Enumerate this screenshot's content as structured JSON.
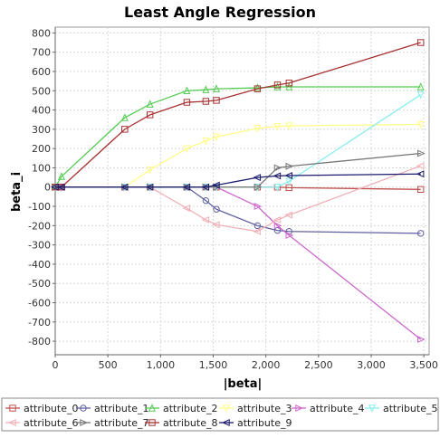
{
  "chart_data": {
    "type": "line",
    "title": "Least Angle Regression",
    "xlabel": "|beta|",
    "ylabel": "beta_i",
    "xlim": [
      0,
      3550
    ],
    "ylim": [
      -870,
      830
    ],
    "xticks": [
      0,
      500,
      1000,
      1500,
      2000,
      2500,
      3000,
      3500
    ],
    "xtick_labels": [
      "0",
      "500",
      "1,000",
      "1,500",
      "2,000",
      "2,500",
      "3,000",
      "3,500"
    ],
    "yticks": [
      -800,
      -700,
      -600,
      -500,
      -400,
      -300,
      -200,
      -100,
      0,
      100,
      200,
      300,
      400,
      500,
      600,
      700,
      800
    ],
    "ytick_labels": [
      "-800",
      "-700",
      "-600",
      "-500",
      "-400",
      "-300",
      "-200",
      "-100",
      "0",
      "100",
      "200",
      "300",
      "400",
      "500",
      "600",
      "700",
      "800"
    ],
    "grid": true,
    "legend_position": "bottom",
    "series": [
      {
        "name": "attribute_0",
        "color": "#c0504d",
        "marker": "square",
        "x": [
          0,
          60,
          660,
          900,
          1250,
          1430,
          1530,
          1920,
          2110,
          2220,
          3470
        ],
        "y": [
          0,
          0,
          0,
          0,
          0,
          0,
          0,
          0,
          0,
          -3,
          -12
        ]
      },
      {
        "name": "attribute_1",
        "color": "#6060a0",
        "marker": "circle",
        "x": [
          0,
          60,
          660,
          900,
          1250,
          1430,
          1530,
          1920,
          2110,
          2220,
          3470
        ],
        "y": [
          0,
          0,
          0,
          0,
          0,
          -70,
          -115,
          -200,
          -225,
          -230,
          -240
        ]
      },
      {
        "name": "attribute_2",
        "color": "#55cc55",
        "marker": "triangle-up",
        "x": [
          0,
          60,
          660,
          900,
          1250,
          1430,
          1530,
          1920,
          2110,
          2220,
          3470
        ],
        "y": [
          0,
          55,
          360,
          430,
          500,
          505,
          510,
          515,
          520,
          520,
          520
        ]
      },
      {
        "name": "attribute_3",
        "color": "#ffff88",
        "marker": "triangle-down",
        "x": [
          0,
          60,
          660,
          900,
          1250,
          1430,
          1530,
          1920,
          2110,
          2220,
          3470
        ],
        "y": [
          0,
          0,
          0,
          90,
          200,
          240,
          260,
          305,
          315,
          318,
          325
        ]
      },
      {
        "name": "attribute_4",
        "color": "#cc66cc",
        "marker": "triangle-right",
        "x": [
          0,
          60,
          660,
          900,
          1250,
          1430,
          1530,
          1920,
          2110,
          2220,
          3470
        ],
        "y": [
          0,
          0,
          0,
          0,
          0,
          0,
          0,
          -100,
          -200,
          -250,
          -790
        ]
      },
      {
        "name": "attribute_5",
        "color": "#88eeee",
        "marker": "triangle-down",
        "x": [
          0,
          60,
          660,
          900,
          1250,
          1430,
          1530,
          1920,
          2110,
          2220,
          3470
        ],
        "y": [
          0,
          0,
          0,
          0,
          0,
          0,
          0,
          0,
          0,
          30,
          480
        ]
      },
      {
        "name": "attribute_6",
        "color": "#f0b0b8",
        "marker": "triangle-left",
        "x": [
          0,
          60,
          660,
          900,
          1250,
          1430,
          1530,
          1920,
          2110,
          2220,
          3470
        ],
        "y": [
          0,
          0,
          0,
          0,
          -110,
          -170,
          -195,
          -230,
          -170,
          -145,
          110
        ]
      },
      {
        "name": "attribute_7",
        "color": "#777777",
        "marker": "triangle-right",
        "x": [
          0,
          60,
          660,
          900,
          1250,
          1430,
          1530,
          1920,
          2110,
          2220,
          3470
        ],
        "y": [
          0,
          0,
          0,
          0,
          0,
          0,
          0,
          0,
          100,
          108,
          175
        ]
      },
      {
        "name": "attribute_8",
        "color": "#a83232",
        "marker": "square",
        "x": [
          0,
          60,
          660,
          900,
          1250,
          1430,
          1530,
          1920,
          2110,
          2220,
          3470
        ],
        "y": [
          0,
          0,
          300,
          375,
          440,
          445,
          450,
          510,
          530,
          540,
          750
        ]
      },
      {
        "name": "attribute_9",
        "color": "#1a1a6e",
        "marker": "triangle-left",
        "x": [
          0,
          60,
          660,
          900,
          1250,
          1430,
          1530,
          1920,
          2110,
          2220,
          3470
        ],
        "y": [
          0,
          0,
          0,
          0,
          0,
          0,
          10,
          50,
          58,
          60,
          68
        ]
      }
    ]
  }
}
